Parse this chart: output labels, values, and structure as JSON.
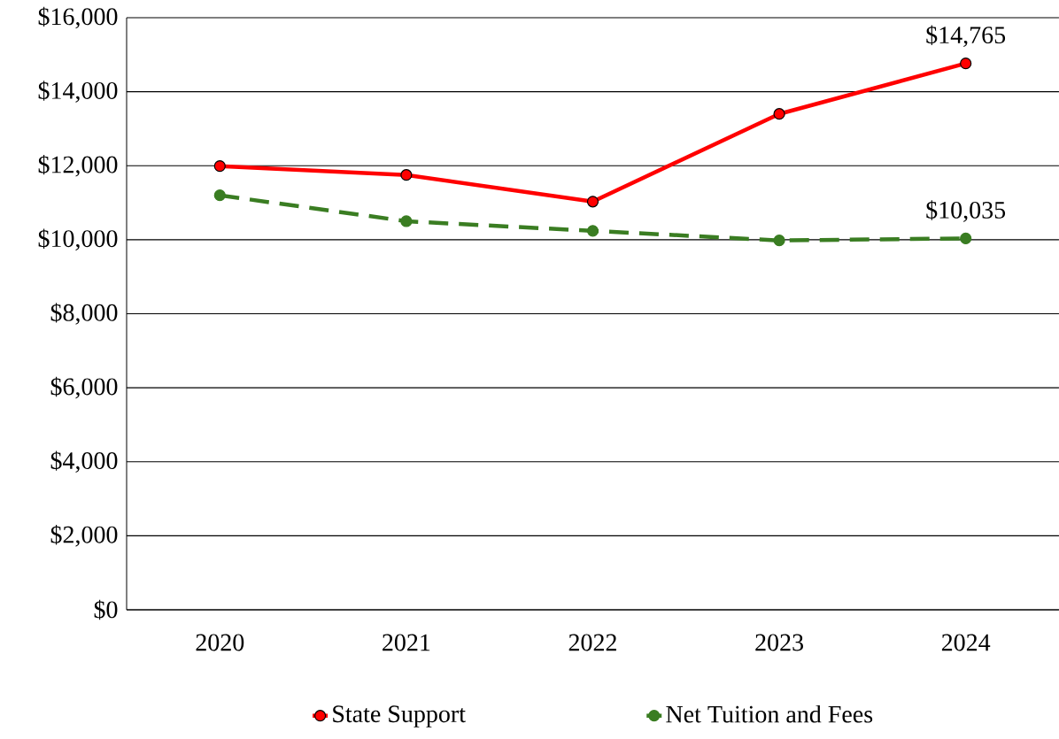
{
  "chart_data": {
    "type": "line",
    "categories": [
      "2020",
      "2021",
      "2022",
      "2023",
      "2024"
    ],
    "series": [
      {
        "name": "State Support",
        "color": "#ff0000",
        "values": [
          11990,
          11750,
          11030,
          13400,
          14765
        ],
        "value_labels": [
          null,
          null,
          null,
          null,
          "$14,765"
        ],
        "marker": "circle",
        "line_style": "solid"
      },
      {
        "name": "Net Tuition and Fees",
        "color": "#3a7d22",
        "values": [
          11200,
          10500,
          10240,
          9980,
          10035
        ],
        "value_labels": [
          null,
          null,
          null,
          null,
          "$10,035"
        ],
        "marker": "circle",
        "line_style": "dashed"
      }
    ],
    "ylim": [
      0,
      16000
    ],
    "yticks": [
      {
        "value": 0,
        "label": "$0"
      },
      {
        "value": 2000,
        "label": "$2,000"
      },
      {
        "value": 4000,
        "label": "$4,000"
      },
      {
        "value": 6000,
        "label": "$6,000"
      },
      {
        "value": 8000,
        "label": "$8,000"
      },
      {
        "value": 10000,
        "label": "$10,000"
      },
      {
        "value": 12000,
        "label": "$12,000"
      },
      {
        "value": 14000,
        "label": "$14,000"
      },
      {
        "value": 16000,
        "label": "$16,000"
      }
    ],
    "grid": "y",
    "legend": "bottom"
  }
}
